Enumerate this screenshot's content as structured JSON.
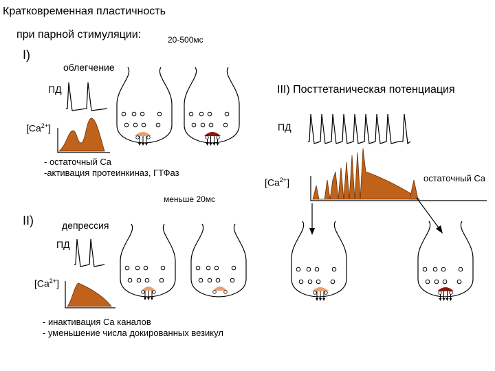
{
  "title_line1": "Кратковременная пластичность",
  "title_line2": "при парной стимуляции:",
  "interval_label": "20-500мс",
  "section1": {
    "numeral": "I)",
    "name": "облегчение",
    "ap_label": "ПД",
    "ca_label": "[Ca",
    "ca_sup": "2+",
    "ca_close": "]",
    "note_line1": "- остаточный Ca",
    "note_line2": "-активация протеинкиназ, ГТФаз"
  },
  "section2": {
    "interval_label": "меньше 20мс",
    "numeral": "II)",
    "name": "депрессия",
    "ap_label": "ПД",
    "ca_label": "[Ca",
    "ca_sup": "2+",
    "ca_close": "]",
    "note_line1": "- инактивация Ca каналов",
    "note_line2": "- уменьшение числа докированных везикул"
  },
  "section3": {
    "title": "III)  Посттетаническая потенциация",
    "ap_label": "ПД",
    "ca_label": "[Ca",
    "ca_sup": "2+",
    "ca_close": "]",
    "residual_label": "остаточный Ca"
  },
  "colors": {
    "calcium_fill": "#c0621a",
    "release_fill": "#e8a070",
    "strong_release_fill": "#8b1a10",
    "line": "#000000",
    "vesicle_fill": "#ffffff"
  }
}
